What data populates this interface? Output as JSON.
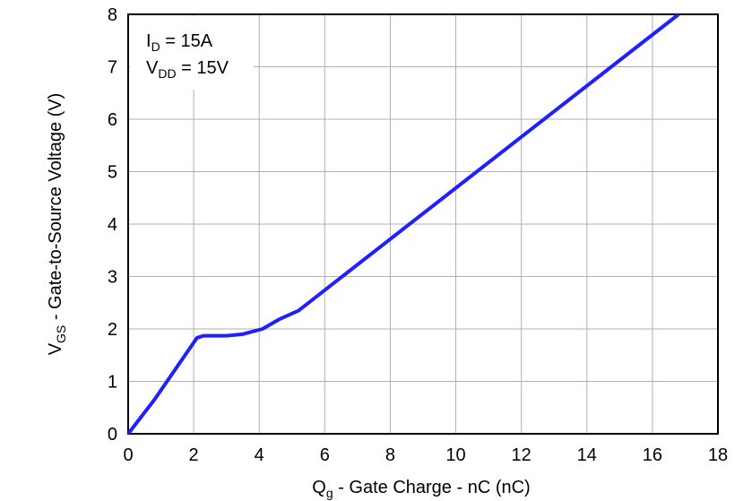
{
  "chart_data": {
    "type": "line",
    "ylabel": {
      "main": "V",
      "sub": "GS",
      "rest": " - Gate-to-Source Voltage (V)"
    },
    "xlabel": {
      "main": "Q",
      "sub": "g",
      "rest": " - Gate Charge - nC (nC)"
    },
    "annotations": [
      {
        "main": "I",
        "sub": "D",
        "rest": " = 15A"
      },
      {
        "main": "V",
        "sub": "DD",
        "rest": " = 15V"
      }
    ],
    "series": [
      {
        "color": "#1f1fff",
        "x": [
          0,
          0.8,
          2.1,
          2.3,
          3,
          3.5,
          4.1,
          4.6,
          5.2,
          16.8
        ],
        "values": [
          0,
          0.65,
          1.83,
          1.87,
          1.87,
          1.9,
          2.0,
          2.18,
          2.35,
          8.0
        ]
      }
    ],
    "xlim": [
      0,
      18
    ],
    "xticks": [
      0,
      2,
      4,
      6,
      8,
      10,
      12,
      14,
      16,
      18
    ],
    "ylim": [
      0,
      8
    ],
    "yticks": [
      0,
      1,
      2,
      3,
      4,
      5,
      6,
      7,
      8
    ],
    "grid": true
  }
}
